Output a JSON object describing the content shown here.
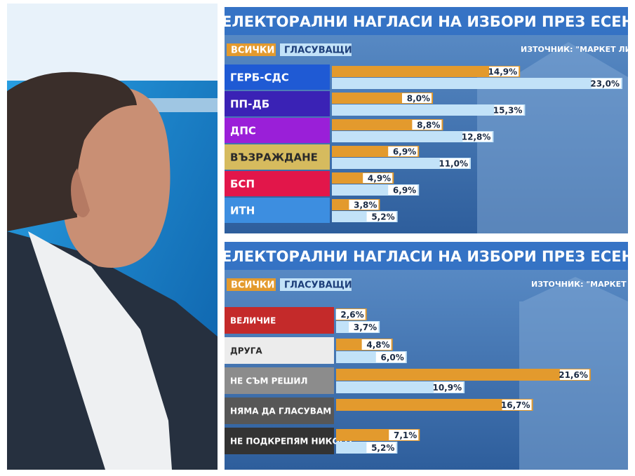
{
  "chart_data": [
    {
      "type": "bar",
      "orientation": "horizontal",
      "title": "ЕЛЕКТОРАЛНИ НАГЛАСИ НА ИЗБОРИ ПРЕЗ ЕСЕНТА",
      "source": "ИЗТОЧНИК: \"МАРКЕТ ЛИН",
      "categories": [
        "ГЕРБ-СДС",
        "ПП-ДБ",
        "ДПС",
        "ВЪЗРАЖДАНЕ",
        "БСП",
        "ИТН"
      ],
      "category_colors": [
        "#1f5ad4",
        "#3a22b5",
        "#9a1fd8",
        "#d6bb5e",
        "#e2164a",
        "#3d8ee0"
      ],
      "series": [
        {
          "name": "ВСИЧКИ",
          "color": "#e39a2d",
          "values": [
            14.9,
            8.0,
            8.8,
            6.9,
            4.9,
            3.8
          ],
          "value_labels": [
            "14,9%",
            "8,0%",
            "8,8%",
            "6,9%",
            "4,9%",
            "3,8%"
          ]
        },
        {
          "name": "ГЛАСУВАЩИ",
          "color": "#c2e2f8",
          "values": [
            23.0,
            15.3,
            12.8,
            11.0,
            6.9,
            5.2
          ],
          "value_labels": [
            "23,0%",
            "15,3%",
            "12,8%",
            "11,0%",
            "6,9%",
            "5,2%"
          ]
        }
      ]
    },
    {
      "type": "bar",
      "orientation": "horizontal",
      "title": "ЕЛЕКТОРАЛНИ НАГЛАСИ НА ИЗБОРИ ПРЕЗ ЕСЕНТ",
      "source": "ИЗТОЧНИК: \"МАРКЕТ Л",
      "categories": [
        "ВЕЛИЧИЕ",
        "ДРУГА",
        "НЕ СЪМ РЕШИЛ",
        "НЯМА ДА ГЛАСУВАМ",
        "НЕ ПОДКРЕПЯМ НИКОГО"
      ],
      "category_colors": [
        "#c42a2a",
        "#ececec",
        "#8c8c8c",
        "#575757",
        "#333333"
      ],
      "series": [
        {
          "name": "ВСИЧКИ",
          "color": "#e39a2d",
          "values": [
            2.6,
            4.8,
            21.6,
            16.7,
            7.1
          ],
          "value_labels": [
            "2,6%",
            "4,8%",
            "21,6%",
            "16,7%",
            "7,1%"
          ]
        },
        {
          "name": "ГЛАСУВАЩИ",
          "color": "#c2e2f8",
          "values": [
            3.7,
            6.0,
            10.9,
            null,
            5.2
          ],
          "value_labels": [
            "3,7%",
            "6,0%",
            "10,9%",
            null,
            "5,2%"
          ]
        }
      ]
    }
  ]
}
